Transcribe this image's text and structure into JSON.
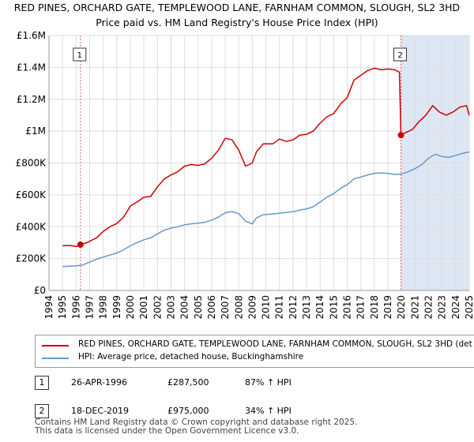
{
  "chart_data": {
    "type": "line",
    "title": "RED PINES, ORCHARD GATE, TEMPLEWOOD LANE, FARNHAM COMMON, SLOUGH, SL2 3HD",
    "subtitle": "Price paid vs. HM Land Registry's House Price Index (HPI)",
    "xlabel": "",
    "ylabel": "",
    "xlim": [
      1994,
      2025
    ],
    "ylim": [
      0,
      1600000
    ],
    "x_ticks": [
      "1994",
      "1995",
      "1996",
      "1997",
      "1998",
      "1999",
      "2000",
      "2001",
      "2002",
      "2003",
      "2004",
      "2005",
      "2006",
      "2007",
      "2008",
      "2009",
      "2010",
      "2011",
      "2012",
      "2013",
      "2014",
      "2015",
      "2016",
      "2017",
      "2018",
      "2019",
      "2020",
      "2021",
      "2022",
      "2023",
      "2024",
      "2025"
    ],
    "y_ticks": [
      {
        "value": 0,
        "label": "£0"
      },
      {
        "value": 200000,
        "label": "£200K"
      },
      {
        "value": 400000,
        "label": "£400K"
      },
      {
        "value": 600000,
        "label": "£600K"
      },
      {
        "value": 800000,
        "label": "£800K"
      },
      {
        "value": 1000000,
        "label": "£1M"
      },
      {
        "value": 1200000,
        "label": "£1.2M"
      },
      {
        "value": 1400000,
        "label": "£1.4M"
      },
      {
        "value": 1600000,
        "label": "£1.6M"
      }
    ],
    "grid": true,
    "series": [
      {
        "name": "RED PINES, ORCHARD GATE, TEMPLEWOOD LANE, FARNHAM COMMON, SLOUGH, SL2 3HD (det",
        "color": "#cc0000",
        "x": [
          1995.0,
          1995.5,
          1996.0,
          1996.32,
          1996.8,
          1997.5,
          1998.0,
          1998.5,
          1999.0,
          1999.5,
          2000.0,
          2000.5,
          2001.0,
          2001.5,
          2002.0,
          2002.5,
          2003.0,
          2003.5,
          2004.0,
          2004.5,
          2005.0,
          2005.5,
          2006.0,
          2006.5,
          2007.0,
          2007.5,
          2008.0,
          2008.5,
          2009.0,
          2009.3,
          2009.8,
          2010.5,
          2011.0,
          2011.5,
          2012.0,
          2012.5,
          2013.0,
          2013.5,
          2014.0,
          2014.5,
          2015.0,
          2015.5,
          2016.0,
          2016.5,
          2017.0,
          2017.5,
          2018.0,
          2018.5,
          2019.0,
          2019.5,
          2019.85,
          2019.96,
          2020.3,
          2020.8,
          2021.3,
          2021.8,
          2022.3,
          2022.8,
          2023.3,
          2023.8,
          2024.3,
          2024.8,
          2025.0
        ],
        "values": [
          280000,
          283000,
          276000,
          287500,
          300000,
          330000,
          370000,
          400000,
          420000,
          460000,
          530000,
          555000,
          585000,
          590000,
          650000,
          700000,
          725000,
          745000,
          780000,
          790000,
          785000,
          795000,
          830000,
          880000,
          955000,
          945000,
          880000,
          780000,
          800000,
          870000,
          920000,
          920000,
          950000,
          935000,
          945000,
          975000,
          980000,
          1000000,
          1050000,
          1090000,
          1110000,
          1170000,
          1210000,
          1320000,
          1350000,
          1380000,
          1395000,
          1385000,
          1390000,
          1385000,
          1370000,
          975000,
          990000,
          1010000,
          1060000,
          1100000,
          1160000,
          1120000,
          1100000,
          1120000,
          1150000,
          1160000,
          1100000
        ]
      },
      {
        "name": "HPI: Average price, detached house, Buckinghamshire",
        "color": "#6699cc",
        "x": [
          1995.0,
          1995.5,
          1996.0,
          1996.5,
          1997.0,
          1997.5,
          1998.0,
          1998.5,
          1999.0,
          1999.5,
          2000.0,
          2000.5,
          2001.0,
          2001.5,
          2002.0,
          2002.5,
          2003.0,
          2003.5,
          2004.0,
          2004.5,
          2005.0,
          2005.5,
          2006.0,
          2006.5,
          2007.0,
          2007.5,
          2008.0,
          2008.5,
          2009.0,
          2009.3,
          2009.8,
          2010.5,
          2011.0,
          2011.5,
          2012.0,
          2012.5,
          2013.0,
          2013.5,
          2014.0,
          2014.5,
          2015.0,
          2015.5,
          2016.0,
          2016.5,
          2017.0,
          2017.5,
          2018.0,
          2018.5,
          2019.0,
          2019.5,
          2020.0,
          2020.5,
          2021.0,
          2021.5,
          2022.0,
          2022.5,
          2023.0,
          2023.5,
          2024.0,
          2024.5,
          2025.0
        ],
        "values": [
          150000,
          152000,
          154000,
          160000,
          178000,
          195000,
          210000,
          222000,
          235000,
          255000,
          280000,
          300000,
          318000,
          330000,
          355000,
          378000,
          392000,
          400000,
          412000,
          418000,
          422000,
          428000,
          442000,
          460000,
          488000,
          495000,
          482000,
          435000,
          418000,
          455000,
          475000,
          480000,
          485000,
          490000,
          495000,
          505000,
          512000,
          525000,
          555000,
          585000,
          608000,
          640000,
          665000,
          700000,
          712000,
          725000,
          735000,
          738000,
          735000,
          728000,
          730000,
          745000,
          765000,
          790000,
          830000,
          855000,
          840000,
          835000,
          848000,
          860000,
          870000
        ]
      }
    ],
    "markers": [
      {
        "label": "1",
        "x": 1996.32,
        "value": 287500
      },
      {
        "label": "2",
        "x": 2019.96,
        "value": 975000
      }
    ]
  },
  "legend": {
    "property": "RED PINES, ORCHARD GATE, TEMPLEWOOD LANE, FARNHAM COMMON, SLOUGH, SL2 3HD (det",
    "hpi": "HPI: Average price, detached house, Buckinghamshire"
  },
  "transactions": [
    {
      "num": "1",
      "date": "26-APR-1996",
      "price": "£287,500",
      "hpi": "87% ↑ HPI"
    },
    {
      "num": "2",
      "date": "18-DEC-2019",
      "price": "£975,000",
      "hpi": "34% ↑ HPI"
    }
  ],
  "footer": {
    "line1": "Contains HM Land Registry data © Crown copyright and database right 2025.",
    "line2": "This data is licensed under the Open Government Licence v3.0."
  },
  "colors": {
    "property_line": "#cc0000",
    "hpi_line": "#6699cc",
    "shading": "#dde6f3",
    "vline": "#e06070",
    "grid": "#dddddd"
  }
}
